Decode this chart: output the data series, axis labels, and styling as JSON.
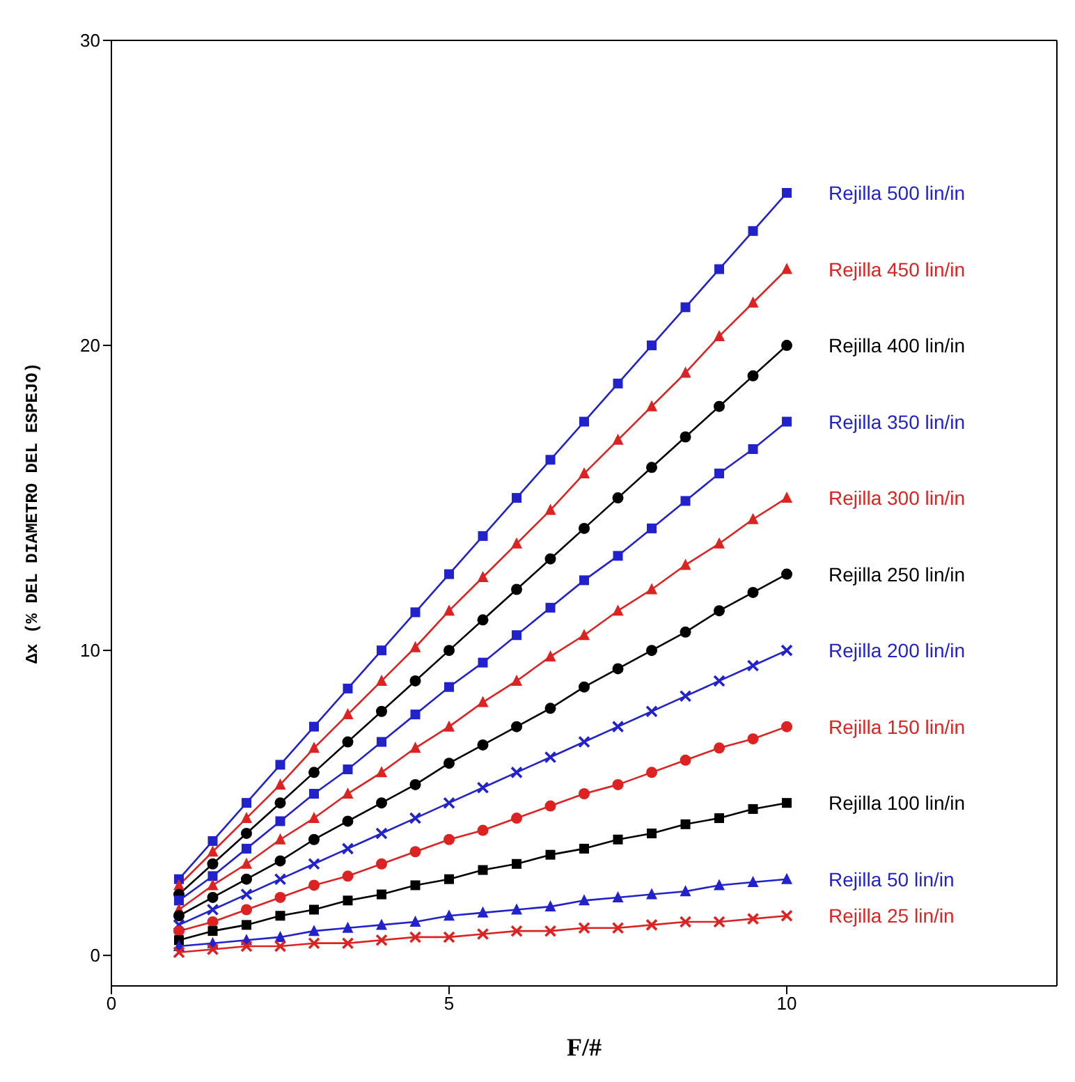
{
  "chart_data": {
    "type": "line",
    "xlabel": "F/#",
    "ylabel": "Δx  (% DEL DIAMETRO DEL ESPEJO)",
    "x": [
      1,
      1.5,
      2,
      2.5,
      3,
      3.5,
      4,
      4.5,
      5,
      5.5,
      6,
      6.5,
      7,
      7.5,
      8,
      8.5,
      9,
      9.5,
      10
    ],
    "xlim": [
      0,
      14
    ],
    "xticks": [
      0,
      5,
      10
    ],
    "ylim": [
      -1,
      30
    ],
    "yticks": [
      0,
      10,
      20,
      30
    ],
    "grid": false,
    "legend": false,
    "series": [
      {
        "name": "Rejilla 500 lin/in",
        "color": "#2222cc",
        "marker": "square",
        "values": [
          2.5,
          3.75,
          5,
          6.25,
          7.5,
          8.75,
          10,
          11.25,
          12.5,
          13.75,
          15,
          16.25,
          17.5,
          18.75,
          20,
          21.25,
          22.5,
          23.75,
          25
        ]
      },
      {
        "name": "Rejilla 450 lin/in",
        "color": "#dd2222",
        "marker": "triangle",
        "values": [
          2.3,
          3.4,
          4.5,
          5.6,
          6.8,
          7.9,
          9,
          10.1,
          11.3,
          12.4,
          13.5,
          14.6,
          15.8,
          16.9,
          18,
          19.1,
          20.3,
          21.4,
          22.5
        ]
      },
      {
        "name": "Rejilla 400 lin/in",
        "color": "#000000",
        "marker": "circle",
        "values": [
          2,
          3,
          4,
          5,
          6,
          7,
          8,
          9,
          10,
          11,
          12,
          13,
          14,
          15,
          16,
          17,
          18,
          19,
          20
        ]
      },
      {
        "name": "Rejilla 350 lin/in",
        "color": "#2222cc",
        "marker": "square",
        "values": [
          1.8,
          2.6,
          3.5,
          4.4,
          5.3,
          6.1,
          7,
          7.9,
          8.8,
          9.6,
          10.5,
          11.4,
          12.3,
          13.1,
          14,
          14.9,
          15.8,
          16.6,
          17.5
        ]
      },
      {
        "name": "Rejilla 300 lin/in",
        "color": "#dd2222",
        "marker": "triangle",
        "values": [
          1.5,
          2.3,
          3,
          3.8,
          4.5,
          5.3,
          6,
          6.8,
          7.5,
          8.3,
          9,
          9.8,
          10.5,
          11.3,
          12,
          12.8,
          13.5,
          14.3,
          15
        ]
      },
      {
        "name": "Rejilla 250 lin/in",
        "color": "#000000",
        "marker": "circle",
        "values": [
          1.3,
          1.9,
          2.5,
          3.1,
          3.8,
          4.4,
          5,
          5.6,
          6.3,
          6.9,
          7.5,
          8.1,
          8.8,
          9.4,
          10,
          10.6,
          11.3,
          11.9,
          12.5
        ]
      },
      {
        "name": "Rejilla 200 lin/in",
        "color": "#2222cc",
        "marker": "cross",
        "values": [
          1,
          1.5,
          2,
          2.5,
          3,
          3.5,
          4,
          4.5,
          5,
          5.5,
          6,
          6.5,
          7,
          7.5,
          8,
          8.5,
          9,
          9.5,
          10
        ]
      },
      {
        "name": "Rejilla 150 lin/in",
        "color": "#dd2222",
        "marker": "circle",
        "values": [
          0.8,
          1.1,
          1.5,
          1.9,
          2.3,
          2.6,
          3,
          3.4,
          3.8,
          4.1,
          4.5,
          4.9,
          5.3,
          5.6,
          6,
          6.4,
          6.8,
          7.1,
          7.5
        ]
      },
      {
        "name": "Rejilla 100 lin/in",
        "color": "#000000",
        "marker": "square",
        "values": [
          0.5,
          0.8,
          1,
          1.3,
          1.5,
          1.8,
          2,
          2.3,
          2.5,
          2.8,
          3,
          3.3,
          3.5,
          3.8,
          4,
          4.3,
          4.5,
          4.8,
          5
        ]
      },
      {
        "name": "Rejilla 50 lin/in",
        "color": "#2222cc",
        "marker": "triangle",
        "values": [
          0.3,
          0.4,
          0.5,
          0.6,
          0.8,
          0.9,
          1,
          1.1,
          1.3,
          1.4,
          1.5,
          1.6,
          1.8,
          1.9,
          2,
          2.1,
          2.3,
          2.4,
          2.5
        ]
      },
      {
        "name": "Rejilla 25 lin/in",
        "color": "#dd2222",
        "marker": "cross",
        "values": [
          0.1,
          0.2,
          0.3,
          0.3,
          0.4,
          0.4,
          0.5,
          0.6,
          0.6,
          0.7,
          0.8,
          0.8,
          0.9,
          0.9,
          1,
          1.1,
          1.1,
          1.2,
          1.3
        ]
      }
    ]
  }
}
